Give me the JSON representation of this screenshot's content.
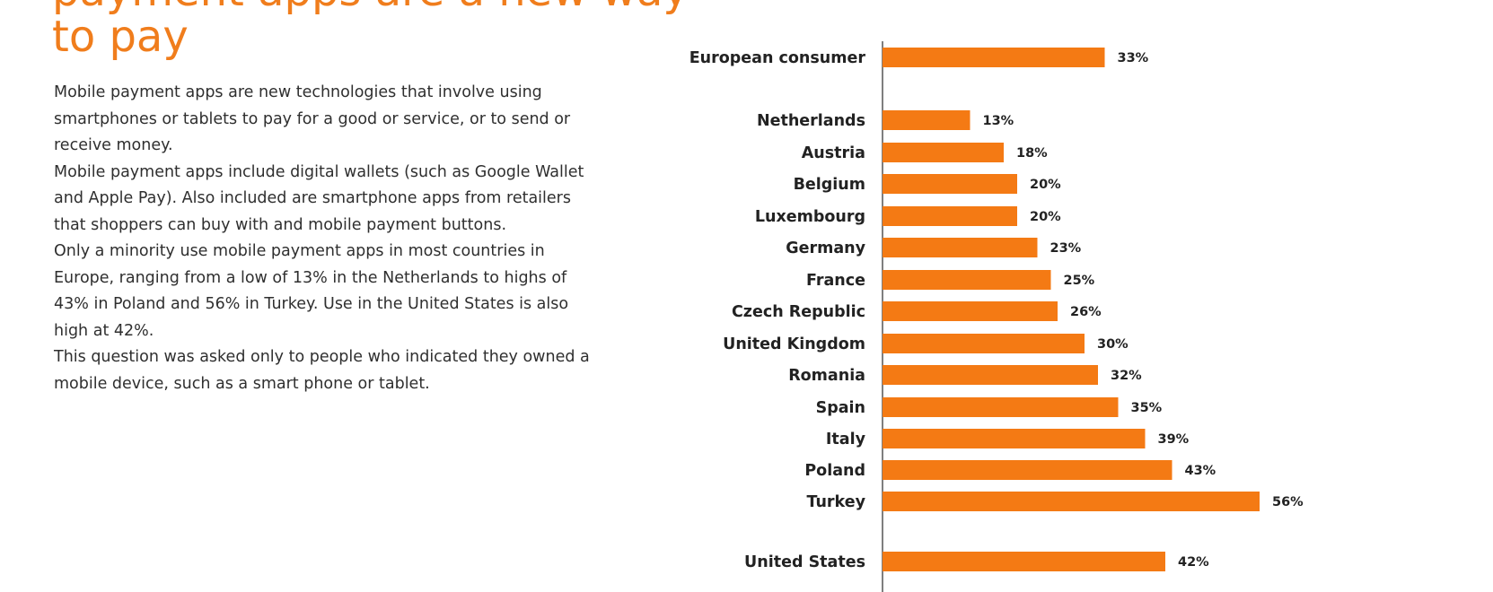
{
  "headline": {
    "top_line": "payment apps are a new way",
    "bottom_line": "to pay"
  },
  "body": {
    "paragraphs": [
      "Mobile payment apps are new technologies that involve using smartphones or tablets to pay for a good or service, or to send or receive money.",
      "Mobile payment apps include digital wallets (such as Google Wallet and Apple Pay). Also included are smartphone apps from retailers that shoppers can buy with and mobile payment buttons.",
      "Only a minority use mobile payment apps in most countries in Europe, ranging from a low of 13% in the Netherlands to highs of 43% in Poland and 56% in Turkey. Use in the United States is also high at 42%.",
      "This question was asked only to people who indicated they owned a mobile device, such as a smart phone or tablet."
    ]
  },
  "colors": {
    "accent": "#f07d1c",
    "bar": "#f47a14",
    "axis": "#555555",
    "text": "#2f2f2f"
  },
  "chart_data": {
    "type": "bar",
    "orientation": "horizontal",
    "title": "",
    "xlabel": "",
    "ylabel": "",
    "xlim": [
      0,
      56
    ],
    "grid": false,
    "legend": "none",
    "categories": [
      "European consumer",
      "Netherlands",
      "Austria",
      "Belgium",
      "Luxembourg",
      "Germany",
      "France",
      "Czech Republic",
      "United Kingdom",
      "Romania",
      "Spain",
      "Italy",
      "Poland",
      "Turkey",
      "United States"
    ],
    "values": [
      33,
      13,
      18,
      20,
      20,
      23,
      25,
      26,
      30,
      32,
      35,
      39,
      43,
      56,
      42
    ],
    "value_labels": [
      "33%",
      "13%",
      "18%",
      "20%",
      "20%",
      "23%",
      "25%",
      "26%",
      "30%",
      "32%",
      "35%",
      "39%",
      "43%",
      "56%",
      "42%"
    ]
  }
}
